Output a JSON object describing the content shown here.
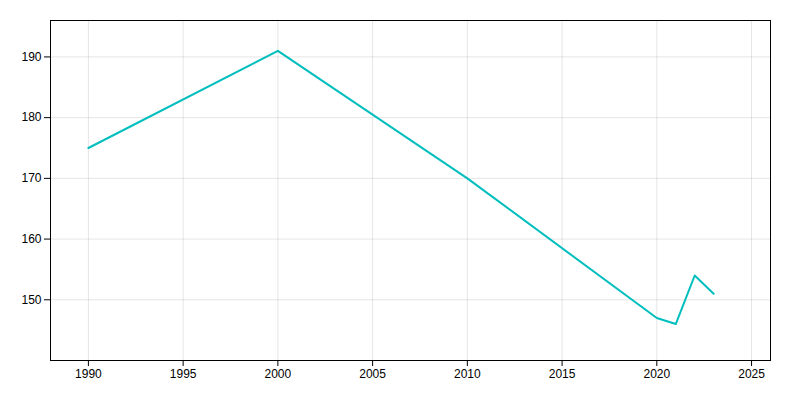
{
  "chart_data": {
    "type": "line",
    "x": [
      1990,
      2000,
      2010,
      2020,
      2021,
      2022,
      2023
    ],
    "values": [
      175,
      191,
      170,
      147,
      146,
      154,
      151
    ],
    "color": "#00BEBE",
    "xlim": [
      1988,
      2026
    ],
    "ylim": [
      140,
      196
    ],
    "xticks": [
      1990,
      1995,
      2000,
      2005,
      2010,
      2015,
      2020,
      2025
    ],
    "yticks": [
      150,
      160,
      170,
      180,
      190
    ],
    "grid": true
  }
}
